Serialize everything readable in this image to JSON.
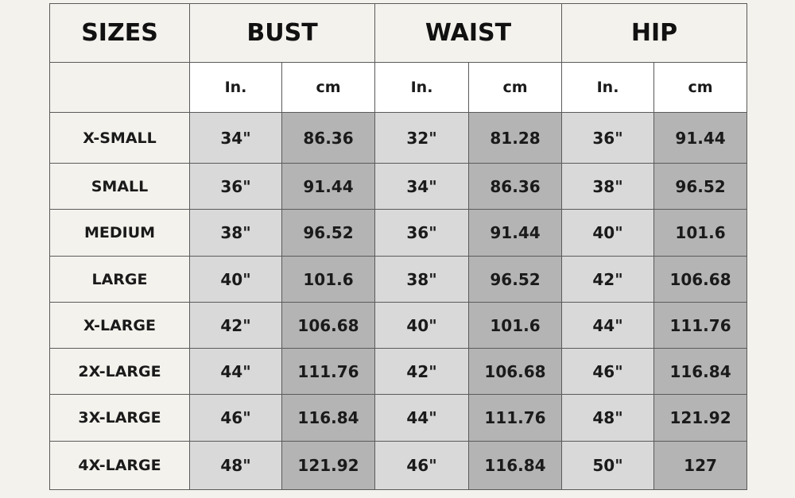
{
  "headers": {
    "sizes": "SIZES",
    "bust": "BUST",
    "waist": "WAIST",
    "hip": "HIP"
  },
  "units": {
    "inch": "In.",
    "cm": "cm"
  },
  "colors": {
    "background": "#f4f2ed",
    "inch_cell": "#d9d9d9",
    "cm_cell": "#b4b4b4"
  },
  "rows": [
    {
      "size": "X-SMALL",
      "bust_in": "34\"",
      "bust_cm": "86.36",
      "waist_in": "32\"",
      "waist_cm": "81.28",
      "hip_in": "36\"",
      "hip_cm": "91.44"
    },
    {
      "size": "SMALL",
      "bust_in": "36\"",
      "bust_cm": "91.44",
      "waist_in": "34\"",
      "waist_cm": "86.36",
      "hip_in": "38\"",
      "hip_cm": "96.52"
    },
    {
      "size": "MEDIUM",
      "bust_in": "38\"",
      "bust_cm": "96.52",
      "waist_in": "36\"",
      "waist_cm": "91.44",
      "hip_in": "40\"",
      "hip_cm": "101.6"
    },
    {
      "size": "LARGE",
      "bust_in": "40\"",
      "bust_cm": "101.6",
      "waist_in": "38\"",
      "waist_cm": "96.52",
      "hip_in": "42\"",
      "hip_cm": "106.68"
    },
    {
      "size": "X-LARGE",
      "bust_in": "42\"",
      "bust_cm": "106.68",
      "waist_in": "40\"",
      "waist_cm": "101.6",
      "hip_in": "44\"",
      "hip_cm": "111.76"
    },
    {
      "size": "2X-LARGE",
      "bust_in": "44\"",
      "bust_cm": "111.76",
      "waist_in": "42\"",
      "waist_cm": "106.68",
      "hip_in": "46\"",
      "hip_cm": "116.84"
    },
    {
      "size": "3X-LARGE",
      "bust_in": "46\"",
      "bust_cm": "116.84",
      "waist_in": "44\"",
      "waist_cm": "111.76",
      "hip_in": "48\"",
      "hip_cm": "121.92"
    },
    {
      "size": "4X-LARGE",
      "bust_in": "48\"",
      "bust_cm": "121.92",
      "waist_in": "46\"",
      "waist_cm": "116.84",
      "hip_in": "50\"",
      "hip_cm": "127"
    }
  ]
}
